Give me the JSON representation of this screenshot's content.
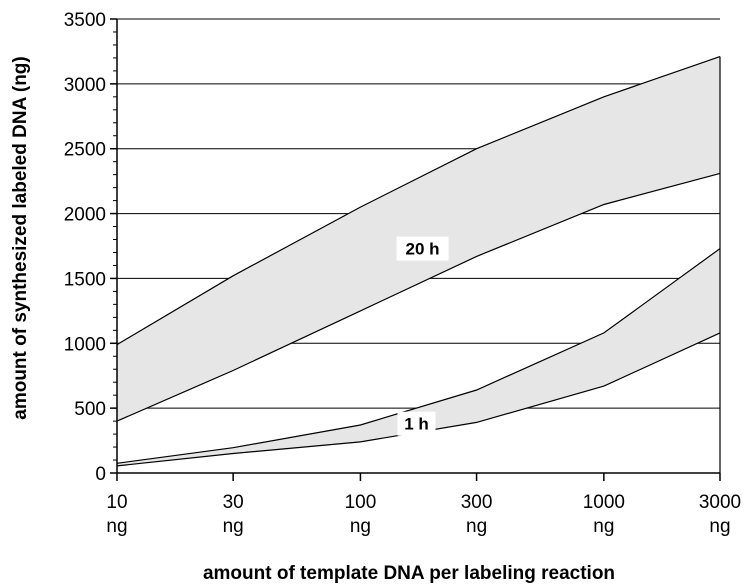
{
  "chart_data": {
    "type": "area",
    "title": "",
    "xlabel": "amount of template DNA per labeling reaction",
    "ylabel": "amount of synthesized labeled DNA (ng)",
    "x_scale": "log",
    "xlim": [
      10,
      3000
    ],
    "ylim": [
      0,
      3500
    ],
    "grid": true,
    "y_ticks": [
      "0",
      "500",
      "1000",
      "1500",
      "2000",
      "2500",
      "3000",
      "3500"
    ],
    "x_ticks": [
      {
        "value": 10,
        "label": "10",
        "unit": "ng"
      },
      {
        "value": 30,
        "label": "30",
        "unit": "ng"
      },
      {
        "value": 100,
        "label": "100",
        "unit": "ng"
      },
      {
        "value": 300,
        "label": "300",
        "unit": "ng"
      },
      {
        "value": 1000,
        "label": "1000",
        "unit": "ng"
      },
      {
        "value": 3000,
        "label": "3000",
        "unit": "ng"
      }
    ],
    "band_color": "#e6e6e6",
    "series": [
      {
        "name": "20 h",
        "x": [
          10,
          30,
          100,
          300,
          1000,
          3000
        ],
        "upper": [
          990,
          1520,
          2050,
          2500,
          2900,
          3210
        ],
        "lower": [
          400,
          790,
          1250,
          1670,
          2070,
          2310
        ]
      },
      {
        "name": "1 h",
        "x": [
          10,
          30,
          100,
          300,
          1000,
          3000
        ],
        "upper": [
          75,
          195,
          370,
          640,
          1080,
          1730
        ],
        "lower": [
          55,
          150,
          240,
          390,
          670,
          1080
        ]
      }
    ]
  }
}
